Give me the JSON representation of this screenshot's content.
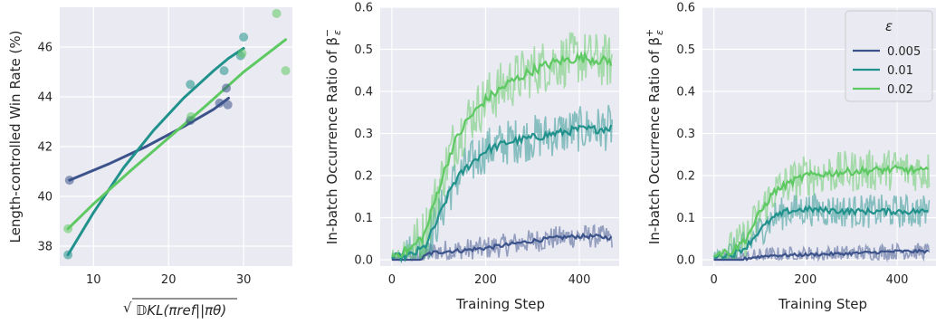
{
  "colors": {
    "plot_bg": "#eaeaf2",
    "grid": "#ffffff",
    "eps_0005": "#3b528b",
    "eps_001": "#21918c",
    "eps_002": "#5ec962"
  },
  "chart_data": [
    {
      "type": "scatter",
      "xlabel_pre": "√",
      "xlabel_text": "𝔻KL(πref||πθ)",
      "ylabel": "Length-controlled Win Rate (%)",
      "xlim": [
        5.5,
        36.5
      ],
      "ylim": [
        37.2,
        47.6
      ],
      "xticks": [
        "10",
        "20",
        "30"
      ],
      "yticks": [
        "38",
        "40",
        "42",
        "44",
        "46"
      ],
      "grid": true,
      "series": [
        {
          "color_key": "eps_0005",
          "points": [
            [
              6.8,
              40.65
            ],
            [
              22.9,
              43.05
            ],
            [
              26.8,
              43.75
            ],
            [
              27.7,
              44.35
            ],
            [
              27.9,
              43.68
            ]
          ],
          "fit": [
            [
              6.8,
              40.65
            ],
            [
              12,
              41.3
            ],
            [
              17,
              42.0
            ],
            [
              22,
              42.8
            ],
            [
              26,
              43.5
            ],
            [
              28,
              43.95
            ]
          ]
        },
        {
          "color_key": "eps_001",
          "points": [
            [
              6.6,
              37.65
            ],
            [
              22.9,
              44.5
            ],
            [
              27.4,
              45.05
            ],
            [
              29.6,
              45.65
            ],
            [
              30.0,
              46.4
            ]
          ],
          "fit": [
            [
              6.6,
              37.65
            ],
            [
              10,
              39.35
            ],
            [
              14,
              41.15
            ],
            [
              18,
              42.65
            ],
            [
              22,
              43.95
            ],
            [
              26,
              45.05
            ],
            [
              28,
              45.55
            ],
            [
              30,
              45.95
            ]
          ]
        },
        {
          "color_key": "eps_002",
          "points": [
            [
              6.6,
              38.7
            ],
            [
              23.0,
              43.2
            ],
            [
              29.8,
              45.75
            ],
            [
              34.4,
              47.35
            ],
            [
              35.6,
              45.05
            ]
          ],
          "fit": [
            [
              6.6,
              38.7
            ],
            [
              10,
              39.7
            ],
            [
              15,
              41.05
            ],
            [
              20,
              42.35
            ],
            [
              25,
              43.65
            ],
            [
              30,
              45.0
            ],
            [
              35.6,
              46.3
            ]
          ]
        }
      ]
    },
    {
      "type": "line",
      "xlabel": "Training Step",
      "ylabel_pre": "In-batch Occurrence Ratio of β",
      "ylabel_sup": "−",
      "ylabel_sub": "ε",
      "xlim": [
        -25,
        485
      ],
      "ylim": [
        -0.015,
        0.6
      ],
      "xticks": [
        "0",
        "200",
        "400"
      ],
      "yticks": [
        "0.0",
        "0.1",
        "0.2",
        "0.3",
        "0.4",
        "0.5",
        "0.6"
      ],
      "grid": true,
      "series": [
        {
          "color_key": "eps_0005",
          "smooth": [
            [
              0,
              0
            ],
            [
              60,
              0
            ],
            [
              80,
              0.015
            ],
            [
              110,
              0.02
            ],
            [
              150,
              0.022
            ],
            [
              200,
              0.028
            ],
            [
              250,
              0.036
            ],
            [
              300,
              0.045
            ],
            [
              350,
              0.052
            ],
            [
              400,
              0.056
            ],
            [
              440,
              0.055
            ],
            [
              470,
              0.052
            ]
          ],
          "noise": 0.028
        },
        {
          "color_key": "eps_001",
          "smooth": [
            [
              0,
              0.005
            ],
            [
              40,
              0.01
            ],
            [
              70,
              0.03
            ],
            [
              100,
              0.1
            ],
            [
              130,
              0.18
            ],
            [
              160,
              0.22
            ],
            [
              200,
              0.26
            ],
            [
              250,
              0.28
            ],
            [
              300,
              0.29
            ],
            [
              350,
              0.3
            ],
            [
              400,
              0.31
            ],
            [
              440,
              0.31
            ],
            [
              470,
              0.315
            ]
          ],
          "noise": 0.055
        },
        {
          "color_key": "eps_002",
          "smooth": [
            [
              0,
              0.01
            ],
            [
              40,
              0.025
            ],
            [
              70,
              0.06
            ],
            [
              100,
              0.17
            ],
            [
              130,
              0.27
            ],
            [
              160,
              0.33
            ],
            [
              200,
              0.38
            ],
            [
              250,
              0.42
            ],
            [
              300,
              0.45
            ],
            [
              350,
              0.47
            ],
            [
              400,
              0.48
            ],
            [
              440,
              0.475
            ],
            [
              470,
              0.47
            ]
          ],
          "noise": 0.065
        }
      ]
    },
    {
      "type": "line",
      "xlabel": "Training Step",
      "ylabel_pre": "In-batch Occurrence Ratio of β",
      "ylabel_sup": "+",
      "ylabel_sub": "ε",
      "xlim": [
        -25,
        485
      ],
      "ylim": [
        -0.015,
        0.6
      ],
      "xticks": [
        "0",
        "200",
        "400"
      ],
      "yticks": [
        "0.0",
        "0.1",
        "0.2",
        "0.3",
        "0.4",
        "0.5",
        "0.6"
      ],
      "grid": true,
      "legend": {
        "title": "ε",
        "placement": "top-right",
        "entries": [
          "0.005",
          "0.01",
          "0.02"
        ]
      },
      "series": [
        {
          "color_key": "eps_0005",
          "smooth": [
            [
              0,
              0
            ],
            [
              60,
              0
            ],
            [
              80,
              0.005
            ],
            [
              120,
              0.01
            ],
            [
              200,
              0.012
            ],
            [
              300,
              0.015
            ],
            [
              400,
              0.02
            ],
            [
              470,
              0.02
            ]
          ],
          "noise": 0.02
        },
        {
          "color_key": "eps_001",
          "smooth": [
            [
              0,
              0.01
            ],
            [
              40,
              0.012
            ],
            [
              70,
              0.03
            ],
            [
              100,
              0.07
            ],
            [
              130,
              0.1
            ],
            [
              160,
              0.115
            ],
            [
              200,
              0.12
            ],
            [
              300,
              0.115
            ],
            [
              400,
              0.115
            ],
            [
              470,
              0.115
            ]
          ],
          "noise": 0.04
        },
        {
          "color_key": "eps_002",
          "smooth": [
            [
              0,
              0.015
            ],
            [
              40,
              0.02
            ],
            [
              70,
              0.05
            ],
            [
              100,
              0.11
            ],
            [
              130,
              0.16
            ],
            [
              160,
              0.18
            ],
            [
              200,
              0.2
            ],
            [
              250,
              0.205
            ],
            [
              300,
              0.21
            ],
            [
              400,
              0.215
            ],
            [
              470,
              0.21
            ]
          ],
          "noise": 0.05
        }
      ]
    }
  ]
}
